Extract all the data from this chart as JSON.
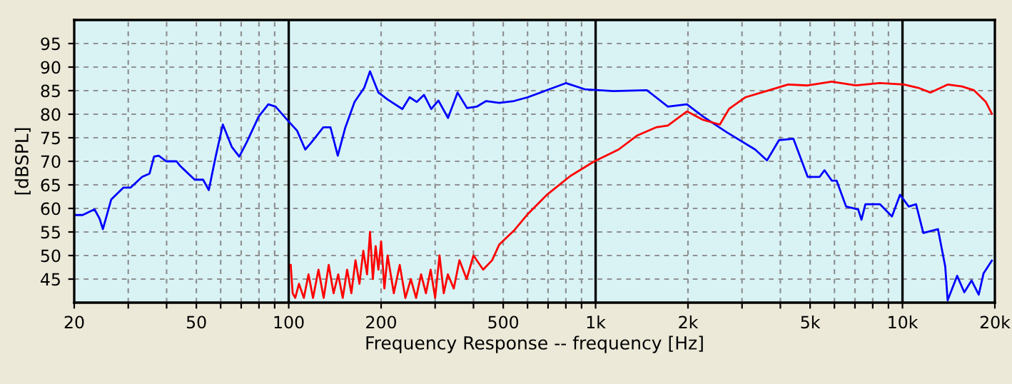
{
  "chart_data": {
    "type": "line",
    "xlabel": "Frequency Response -- frequency [Hz]",
    "ylabel": "[dBSPL]",
    "log": "x",
    "grid": true,
    "marker": "none",
    "line_style": "solid",
    "xlim": [
      20,
      20000
    ],
    "ylim": [
      40,
      100
    ],
    "xticks": [
      20,
      {
        "value": 30,
        "label": null
      },
      {
        "value": 40,
        "label": null
      },
      50,
      {
        "value": 60,
        "label": null
      },
      {
        "value": 70,
        "label": null
      },
      {
        "value": 80,
        "label": null
      },
      {
        "value": 90,
        "label": null
      },
      100,
      200,
      {
        "value": 300,
        "label": null
      },
      {
        "value": 400,
        "label": null
      },
      500,
      {
        "value": 600,
        "label": null
      },
      {
        "value": 700,
        "label": null
      },
      {
        "value": 800,
        "label": null
      },
      {
        "value": 900,
        "label": null
      },
      {
        "value": 1000,
        "label": "1k"
      },
      {
        "value": 2000,
        "label": "2k"
      },
      {
        "value": 3000,
        "label": null
      },
      {
        "value": 4000,
        "label": null
      },
      {
        "value": 5000,
        "label": "5k"
      },
      {
        "value": 6000,
        "label": null
      },
      {
        "value": 7000,
        "label": null
      },
      {
        "value": 8000,
        "label": null
      },
      {
        "value": 9000,
        "label": null
      },
      {
        "value": 10000,
        "label": "10k"
      },
      {
        "value": 20000,
        "label": "20k"
      }
    ],
    "yticks": [
      45,
      50,
      55,
      60,
      65,
      70,
      75,
      80,
      85,
      90,
      95
    ],
    "series": [
      {
        "color": "#0000ff",
        "x": [
          20,
          21.3,
          23.3,
          24.2,
          24.8,
          26.4,
          28.9,
          30.5,
          33.3,
          35.2,
          36.4,
          37.7,
          39.9,
          43.1,
          44.3,
          49.4,
          52.6,
          54.9,
          57.8,
          61.0,
          65.3,
          69.0,
          72.9,
          79.8,
          85.8,
          90.6,
          99.8,
          106.5,
          113.2,
          118.5,
          129.6,
          136.8,
          144.5,
          152.6,
          163.9,
          176.2,
          184,
          196,
          210.4,
          234.6,
          247.7,
          261.4,
          275.9,
          291.3,
          307.5,
          330.4,
          354.9,
          381.2,
          409.6,
          440,
          485,
          542,
          601,
          800,
          922,
          1143,
          1469,
          1573,
          1720,
          1984,
          2241,
          2671,
          3311,
          3618,
          3960,
          4410,
          4910,
          5370,
          5570,
          5880,
          6100,
          6550,
          7170,
          7350,
          7570,
          8440,
          9240,
          9820,
          10480,
          11070,
          11690,
          13050,
          13780,
          14030,
          15070,
          15900,
          16790,
          17720,
          18370,
          19550
        ],
        "values": [
          58.6,
          58.6,
          59.8,
          57.8,
          55.6,
          61.9,
          64.4,
          64.4,
          66.7,
          67.4,
          71.0,
          71.2,
          70.0,
          70.0,
          69.0,
          66.1,
          66.1,
          63.9,
          71.0,
          77.8,
          73.0,
          71.0,
          74.0,
          79.5,
          82.1,
          81.6,
          78.5,
          76.5,
          72.5,
          74.0,
          77.2,
          77.2,
          71.2,
          77.0,
          82.6,
          85.6,
          89.1,
          84.6,
          83.1,
          81.1,
          83.6,
          82.6,
          84.1,
          81.1,
          82.9,
          79.2,
          84.6,
          81.3,
          81.6,
          82.8,
          82.4,
          82.8,
          83.6,
          86.6,
          85.3,
          84.9,
          85.1,
          83.6,
          81.6,
          82.1,
          79.5,
          76.2,
          72.5,
          70.2,
          74.5,
          74.8,
          66.7,
          66.7,
          68.1,
          65.9,
          65.9,
          60.4,
          59.8,
          57.6,
          60.9,
          60.9,
          58.3,
          62.9,
          60.4,
          60.9,
          54.8,
          55.6,
          47.7,
          40.5,
          45.7,
          42.2,
          44.7,
          41.7,
          46.2,
          48.9
        ]
      },
      {
        "color": "#ff0000",
        "x": [
          101.5,
          103,
          105,
          108,
          112,
          116,
          120,
          125,
          130,
          135,
          140,
          145,
          150,
          155,
          160,
          165,
          170,
          175,
          180,
          184,
          188,
          192,
          196,
          200,
          205,
          210,
          220,
          230,
          240,
          250,
          260,
          270,
          280,
          290,
          300,
          310,
          320,
          330,
          345,
          360,
          380,
          400,
          430,
          460,
          485,
          542,
          601,
          694,
          828,
          991,
          1188,
          1368,
          1573,
          1720,
          1984,
          2241,
          2540,
          2720,
          3080,
          3680,
          4240,
          4910,
          5880,
          7040,
          8440,
          10100,
          11260,
          12330,
          14030,
          15630,
          17080,
          18690,
          19550
        ],
        "values": [
          48,
          42,
          41,
          44,
          41,
          46,
          41,
          47,
          41,
          48,
          42,
          46,
          41,
          47,
          42,
          49,
          44,
          51,
          46,
          55,
          45,
          52,
          47,
          53,
          43,
          50,
          42,
          48,
          41,
          45,
          41,
          46,
          42,
          47,
          41,
          50,
          42,
          46,
          43,
          49,
          45,
          50,
          47,
          49,
          52.3,
          55.3,
          58.8,
          62.9,
          66.9,
          70.0,
          72.5,
          75.5,
          77.2,
          77.6,
          80.6,
          78.8,
          77.8,
          81.1,
          83.6,
          85.1,
          86.3,
          86.1,
          86.9,
          86.1,
          86.6,
          86.3,
          85.6,
          84.6,
          86.3,
          85.9,
          85.1,
          82.6,
          80.1
        ]
      }
    ]
  }
}
